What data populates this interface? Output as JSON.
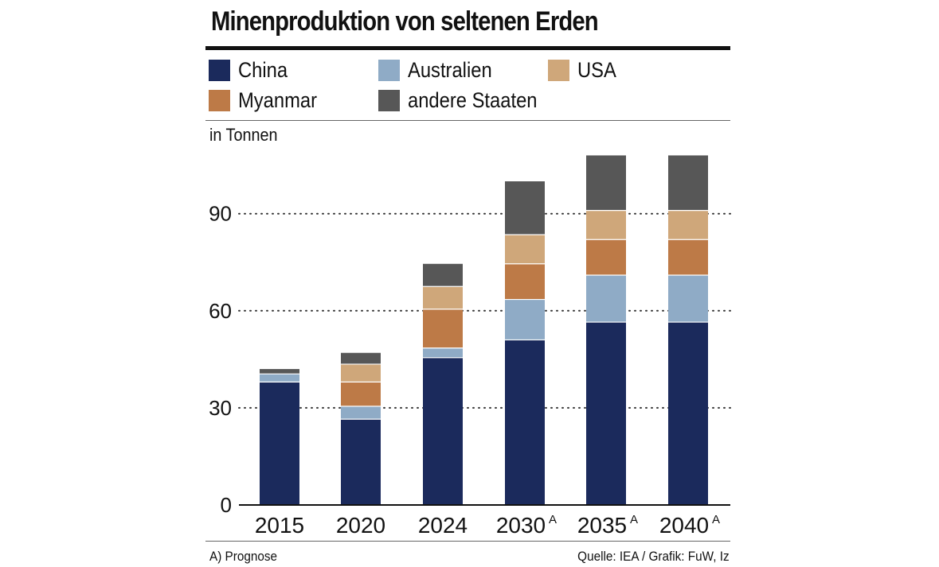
{
  "title": "Minenproduktion von seltenen Erden",
  "unit_label": "in Tonnen",
  "footnote": "A) Prognose",
  "source": "Quelle: IEA / Grafik: FuW, Iz",
  "colors": {
    "China": "#1b2a5c",
    "Australien": "#8fabc6",
    "Myanmar": "#bd7a47",
    "USA": "#cfa77a",
    "andere Staaten": "#575757"
  },
  "legend": [
    {
      "label": "China",
      "color": "#1b2a5c"
    },
    {
      "label": "Australien",
      "color": "#8fabc6"
    },
    {
      "label": "USA",
      "color": "#cfa77a"
    },
    {
      "label": "Myanmar",
      "color": "#bd7a47"
    },
    {
      "label": "andere Staaten",
      "color": "#575757"
    }
  ],
  "chart_data": {
    "type": "bar",
    "stacked": true,
    "title": "Minenproduktion von seltenen Erden",
    "ylabel": "in Tonnen",
    "xlabel": "",
    "categories": [
      "2015",
      "2020",
      "2024",
      "2030",
      "2035",
      "2040"
    ],
    "category_superscripts": [
      "",
      "",
      "",
      "A",
      "A",
      "A"
    ],
    "ylim": [
      0,
      108
    ],
    "yticks": [
      0,
      30,
      60,
      90
    ],
    "grid": "dotted horizontal",
    "legend_position": "top",
    "series": [
      {
        "name": "China",
        "values": [
          38,
          26.5,
          45.5,
          51,
          56.5,
          56.5
        ]
      },
      {
        "name": "Australien",
        "values": [
          2.5,
          4,
          3,
          12.5,
          14.5,
          14.5
        ]
      },
      {
        "name": "Myanmar",
        "values": [
          0,
          7.5,
          12,
          11,
          11,
          11
        ]
      },
      {
        "name": "USA",
        "values": [
          0,
          5.5,
          7,
          9,
          9,
          9
        ]
      },
      {
        "name": "andere Staaten",
        "values": [
          1.5,
          3.5,
          7,
          16.5,
          17,
          17
        ]
      }
    ]
  }
}
